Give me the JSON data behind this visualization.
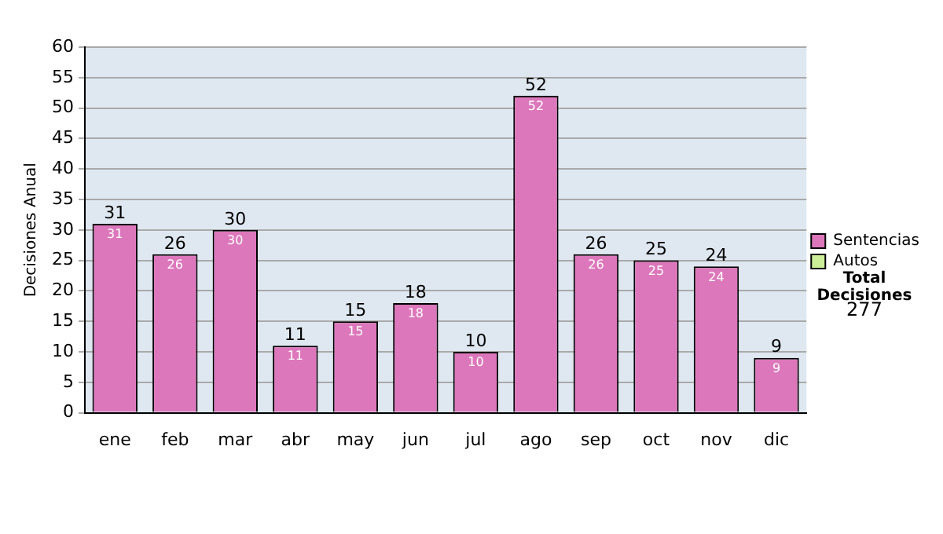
{
  "chart_data": {
    "type": "bar",
    "ylabel": "Decisiones Anual",
    "categories": [
      "ene",
      "feb",
      "mar",
      "abr",
      "may",
      "jun",
      "jul",
      "ago",
      "sep",
      "oct",
      "nov",
      "dic"
    ],
    "series": [
      {
        "name": "Sentencias",
        "color": "#dd77bb",
        "values": [
          31,
          26,
          30,
          11,
          15,
          18,
          10,
          52,
          26,
          25,
          24,
          9
        ],
        "value_labels": [
          "31",
          "26",
          "30",
          "11",
          "15",
          "18",
          "10",
          "52",
          "26",
          "25",
          "24",
          "9"
        ]
      },
      {
        "name": "Autos",
        "color": "#ccee99",
        "values": [
          0,
          0,
          0,
          0,
          0,
          0,
          0,
          0,
          0,
          0,
          0,
          0
        ]
      }
    ],
    "stacked": true,
    "totals": [
      "31",
      "26",
      "30",
      "11",
      "15",
      "18",
      "10",
      "52",
      "26",
      "25",
      "24",
      "9"
    ],
    "ylim": [
      0,
      60
    ],
    "yticks": [
      0,
      5,
      10,
      15,
      20,
      25,
      30,
      35,
      40,
      45,
      50,
      55,
      60
    ],
    "grid": "y",
    "legend": "right",
    "annotations": [
      "Total Decisiones",
      "277"
    ]
  }
}
